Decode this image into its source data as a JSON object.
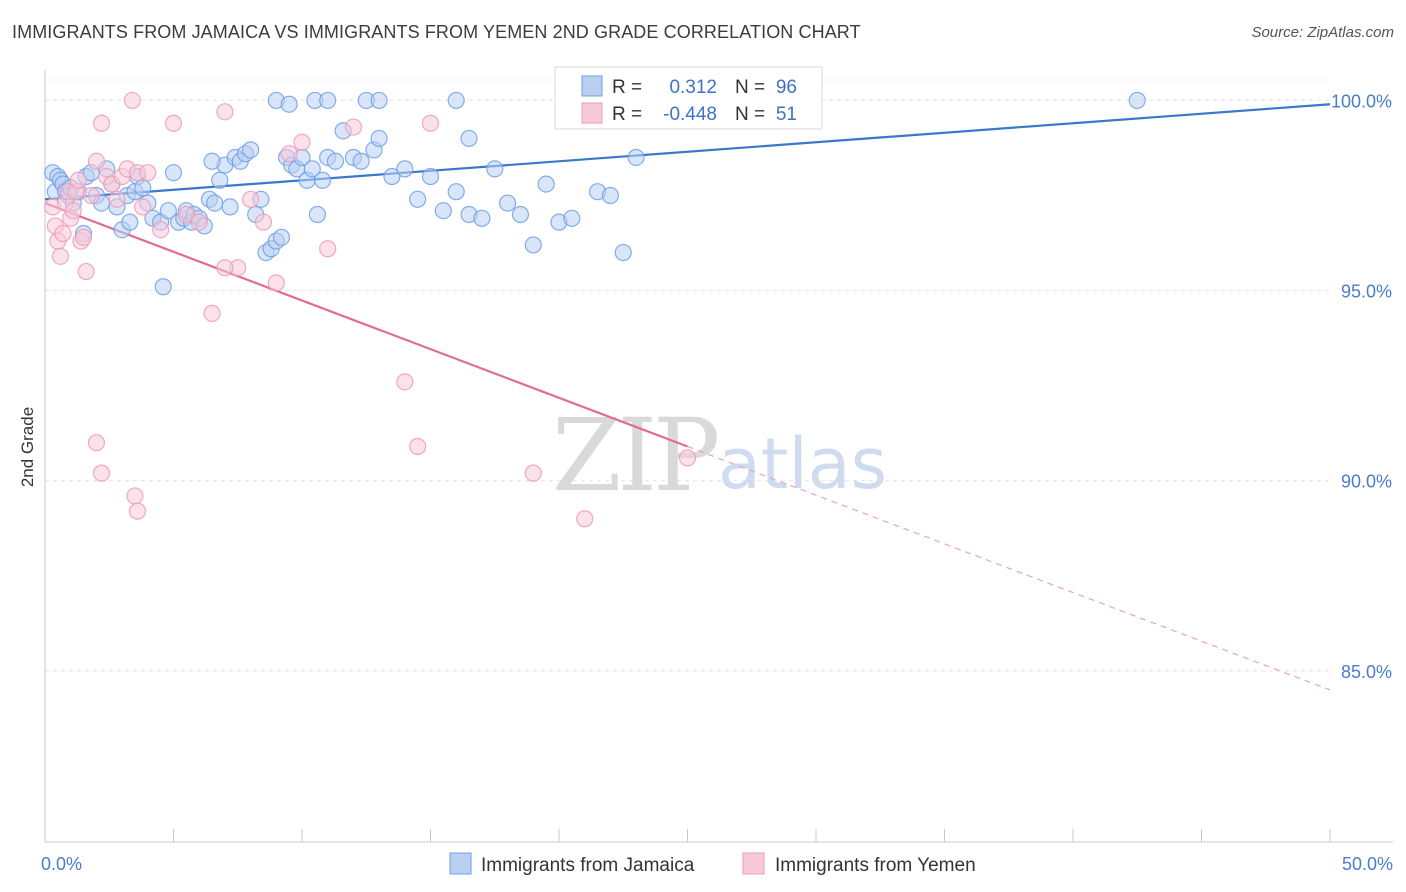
{
  "title": "IMMIGRANTS FROM JAMAICA VS IMMIGRANTS FROM YEMEN 2ND GRADE CORRELATION CHART",
  "source": "Source: ZipAtlas.com",
  "watermark": {
    "zip": "ZIP",
    "atlas": "atlas"
  },
  "chart_data": {
    "type": "scatter",
    "title": "IMMIGRANTS FROM JAMAICA VS IMMIGRANTS FROM YEMEN 2ND GRADE CORRELATION CHART",
    "xlabel": "",
    "ylabel": "2nd Grade",
    "xlim": [
      0,
      50
    ],
    "ylim": [
      80.5,
      100.8
    ],
    "x_tick_labels": [
      "0.0%",
      "50.0%"
    ],
    "y_ticks": [
      {
        "value": 100,
        "label": "100.0%"
      },
      {
        "value": 95,
        "label": "95.0%"
      },
      {
        "value": 90,
        "label": "90.0%"
      },
      {
        "value": 85,
        "label": "85.0%"
      }
    ],
    "grid": "horizontal dashed",
    "legend_position": "bottom-center",
    "stats": [
      {
        "r_label": "R =",
        "r_value": "0.312",
        "n_label": "N =",
        "n_value": "96"
      },
      {
        "r_label": "R =",
        "r_value": "-0.448",
        "n_label": "N =",
        "n_value": "51"
      }
    ],
    "series": [
      {
        "name": "Immigrants from Jamaica",
        "color": "#6fa0e6",
        "fill": "#b9d0f2",
        "trend": {
          "x0": 0,
          "y0": 97.4,
          "x1": 50,
          "y1": 99.9
        },
        "points": [
          [
            0.3,
            98.1
          ],
          [
            0.4,
            97.6
          ],
          [
            0.5,
            98.0
          ],
          [
            0.6,
            97.9
          ],
          [
            0.7,
            97.8
          ],
          [
            0.8,
            97.6
          ],
          [
            0.9,
            97.5
          ],
          [
            1.0,
            97.7
          ],
          [
            1.1,
            97.3
          ],
          [
            1.3,
            97.6
          ],
          [
            1.5,
            96.5
          ],
          [
            1.6,
            98.0
          ],
          [
            1.8,
            98.1
          ],
          [
            2.0,
            97.5
          ],
          [
            2.2,
            97.3
          ],
          [
            2.4,
            98.2
          ],
          [
            2.6,
            97.8
          ],
          [
            2.8,
            97.2
          ],
          [
            3.0,
            96.6
          ],
          [
            3.2,
            97.5
          ],
          [
            3.3,
            96.8
          ],
          [
            3.5,
            97.6
          ],
          [
            3.6,
            98.0
          ],
          [
            3.8,
            97.7
          ],
          [
            4.0,
            97.3
          ],
          [
            4.2,
            96.9
          ],
          [
            4.5,
            96.8
          ],
          [
            4.6,
            95.1
          ],
          [
            4.8,
            97.1
          ],
          [
            5.0,
            98.1
          ],
          [
            5.2,
            96.8
          ],
          [
            5.4,
            96.9
          ],
          [
            5.5,
            97.1
          ],
          [
            5.7,
            96.8
          ],
          [
            5.8,
            97.0
          ],
          [
            6.0,
            96.9
          ],
          [
            6.2,
            96.7
          ],
          [
            6.4,
            97.4
          ],
          [
            6.6,
            97.3
          ],
          [
            6.8,
            97.9
          ],
          [
            7.0,
            98.3
          ],
          [
            7.2,
            97.2
          ],
          [
            7.4,
            98.5
          ],
          [
            7.6,
            98.4
          ],
          [
            7.8,
            98.6
          ],
          [
            8.0,
            98.7
          ],
          [
            8.2,
            97.0
          ],
          [
            8.4,
            97.4
          ],
          [
            8.6,
            96.0
          ],
          [
            8.8,
            96.1
          ],
          [
            9.0,
            96.3
          ],
          [
            9.2,
            96.4
          ],
          [
            9.4,
            98.5
          ],
          [
            9.6,
            98.3
          ],
          [
            9.8,
            98.2
          ],
          [
            10.0,
            98.5
          ],
          [
            10.2,
            97.9
          ],
          [
            10.4,
            98.2
          ],
          [
            10.6,
            97.0
          ],
          [
            10.8,
            97.9
          ],
          [
            11.0,
            98.5
          ],
          [
            11.3,
            98.4
          ],
          [
            11.6,
            99.2
          ],
          [
            12.0,
            98.5
          ],
          [
            12.3,
            98.4
          ],
          [
            12.8,
            98.7
          ],
          [
            13.0,
            99.0
          ],
          [
            13.5,
            98.0
          ],
          [
            14.0,
            98.2
          ],
          [
            14.5,
            97.4
          ],
          [
            15.0,
            98.0
          ],
          [
            15.5,
            97.1
          ],
          [
            16.0,
            97.6
          ],
          [
            16.5,
            97.0
          ],
          [
            17.0,
            96.9
          ],
          [
            17.5,
            98.2
          ],
          [
            18.0,
            97.3
          ],
          [
            18.5,
            97.0
          ],
          [
            19.0,
            96.2
          ],
          [
            19.5,
            97.8
          ],
          [
            20.0,
            96.8
          ],
          [
            20.5,
            96.9
          ],
          [
            21.5,
            97.6
          ],
          [
            22.0,
            97.5
          ],
          [
            22.5,
            96.0
          ],
          [
            23.0,
            98.5
          ],
          [
            6.5,
            98.4
          ],
          [
            9.0,
            100.0
          ],
          [
            9.5,
            99.9
          ],
          [
            10.5,
            100.0
          ],
          [
            11.0,
            100.0
          ],
          [
            12.5,
            100.0
          ],
          [
            13.0,
            100.0
          ],
          [
            16.0,
            100.0
          ],
          [
            16.5,
            99.0
          ],
          [
            42.5,
            100.0
          ]
        ]
      },
      {
        "name": "Immigrants from Yemen",
        "color": "#ef9ab8",
        "fill": "#f8cad9",
        "trend": {
          "x0": 0,
          "y0": 97.3,
          "x1": 25,
          "y1": 90.9,
          "dash_to_x": 50,
          "dash_to_y": 84.5
        },
        "points": [
          [
            0.3,
            97.2
          ],
          [
            0.4,
            96.7
          ],
          [
            0.5,
            96.3
          ],
          [
            0.6,
            95.9
          ],
          [
            0.7,
            96.5
          ],
          [
            0.8,
            97.3
          ],
          [
            0.9,
            97.6
          ],
          [
            1.0,
            96.9
          ],
          [
            1.1,
            97.1
          ],
          [
            1.2,
            97.6
          ],
          [
            1.3,
            97.9
          ],
          [
            1.4,
            96.3
          ],
          [
            1.5,
            96.4
          ],
          [
            1.6,
            95.5
          ],
          [
            1.8,
            97.5
          ],
          [
            2.0,
            98.4
          ],
          [
            2.2,
            99.4
          ],
          [
            2.4,
            98.0
          ],
          [
            2.6,
            97.8
          ],
          [
            2.8,
            97.4
          ],
          [
            3.0,
            98.0
          ],
          [
            3.2,
            98.2
          ],
          [
            3.4,
            100.0
          ],
          [
            3.6,
            98.1
          ],
          [
            3.8,
            97.2
          ],
          [
            4.0,
            98.1
          ],
          [
            4.5,
            96.6
          ],
          [
            5.0,
            99.4
          ],
          [
            5.5,
            97.0
          ],
          [
            6.0,
            96.8
          ],
          [
            6.5,
            94.4
          ],
          [
            7.0,
            99.7
          ],
          [
            7.5,
            95.6
          ],
          [
            8.0,
            97.4
          ],
          [
            8.5,
            96.8
          ],
          [
            9.0,
            95.2
          ],
          [
            9.5,
            98.6
          ],
          [
            10.0,
            98.9
          ],
          [
            11.0,
            96.1
          ],
          [
            12.0,
            99.3
          ],
          [
            14.0,
            92.6
          ],
          [
            14.5,
            90.9
          ],
          [
            15.0,
            99.4
          ],
          [
            2.0,
            91.0
          ],
          [
            2.2,
            90.2
          ],
          [
            3.5,
            89.6
          ],
          [
            3.6,
            89.2
          ],
          [
            7.0,
            95.6
          ],
          [
            19.0,
            90.2
          ],
          [
            21.0,
            89.0
          ],
          [
            25.0,
            90.6
          ]
        ]
      }
    ]
  }
}
